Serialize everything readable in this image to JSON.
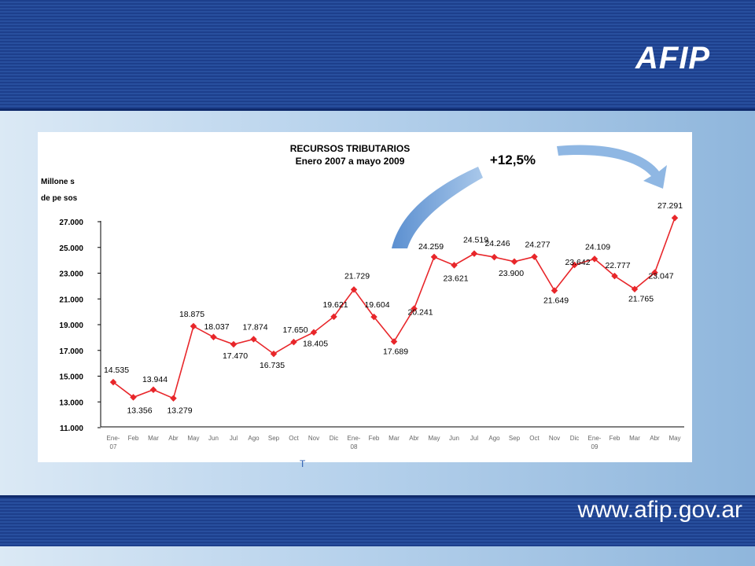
{
  "slide": {
    "logo_text": "AFIP",
    "url_text": "www.afip.gov.ar",
    "stray_mark": "T"
  },
  "chart_data": {
    "type": "line",
    "title": "RECURSOS TRIBUTARIOS",
    "subtitle": "Enero 2007 a mayo 2009",
    "ylabel_line1": "Millone s",
    "ylabel_line2": "de pe sos",
    "annotation": "+12,5%",
    "ylim": [
      11000,
      27000
    ],
    "yticks": [
      "11.000",
      "13.000",
      "15.000",
      "17.000",
      "19.000",
      "21.000",
      "23.000",
      "25.000",
      "27.000"
    ],
    "categories": [
      "Ene- 07",
      "Feb",
      "Mar",
      "Abr",
      "May",
      "Jun",
      "Jul",
      "Ago",
      "Sep",
      "Oct",
      "Nov",
      "Dic",
      "Ene- 08",
      "Feb",
      "Mar",
      "Abr",
      "May",
      "Jun",
      "Jul",
      "Ago",
      "Sep",
      "Oct",
      "Nov",
      "Dic",
      "Ene- 09",
      "Feb",
      "Mar",
      "Abr",
      "May"
    ],
    "values": [
      14535,
      13356,
      13944,
      13279,
      18875,
      18037,
      17470,
      17874,
      16735,
      17650,
      18405,
      19621,
      21729,
      19604,
      17689,
      20241,
      24259,
      23621,
      24519,
      24246,
      23900,
      24277,
      21649,
      23642,
      24109,
      22777,
      21765,
      23047,
      27291
    ],
    "labels": [
      "14.535",
      "13.356",
      "13.944",
      "13.279",
      "18.875",
      "18.037",
      "17.470",
      "17.874",
      "16.735",
      "17.650",
      "18.405",
      "19.621",
      "21.729",
      "19.604",
      "17.689",
      "20.241",
      "24.259",
      "23.621",
      "24.519",
      "24.246",
      "23.900",
      "24.277",
      "21.649",
      "23.642",
      "24.109",
      "22.777",
      "21.765",
      "23.047",
      "27.291"
    ],
    "series_color": "#e8262a",
    "grid": false
  }
}
